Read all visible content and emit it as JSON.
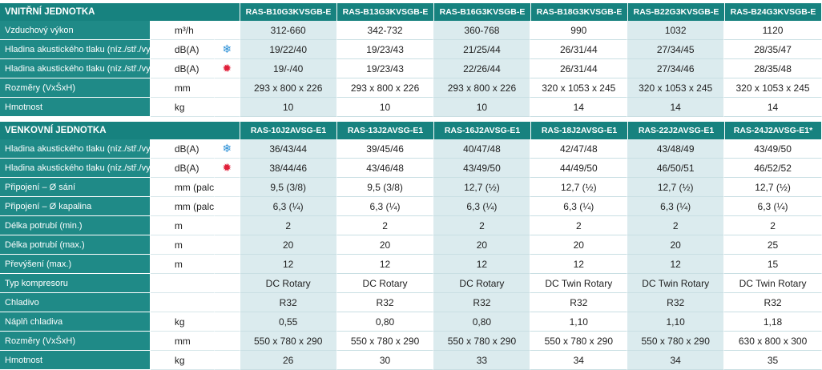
{
  "indoor": {
    "title": "VNITŘNÍ JEDNOTKA",
    "models": [
      "RAS-B10G3KVSGB-E",
      "RAS-B13G3KVSGB-E",
      "RAS-B16G3KVSGB-E",
      "RAS-B18G3KVSGB-E",
      "RAS-B22G3KVSGB-E",
      "RAS-B24G3KVSGB-E"
    ],
    "rows": [
      {
        "label": "Vzduchový výkon",
        "unit": "m³/h",
        "icon": "",
        "values": [
          "312-660",
          "342-732",
          "360-768",
          "990",
          "1032",
          "1120"
        ]
      },
      {
        "label": "Hladina akustického tlaku (níz./stř./vys.)",
        "unit": "dB(A)",
        "icon": "snowflake-icon",
        "values": [
          "19/22/40",
          "19/23/43",
          "21/25/44",
          "26/31/44",
          "27/34/45",
          "28/35/47"
        ]
      },
      {
        "label": "Hladina akustického tlaku (níz./stř./vys.)",
        "unit": "dB(A)",
        "icon": "sun-icon",
        "values": [
          "19/-/40",
          "19/23/43",
          "22/26/44",
          "26/31/44",
          "27/34/46",
          "28/35/48"
        ]
      },
      {
        "label": "Rozměry (VxŠxH)",
        "unit": "mm",
        "icon": "",
        "values": [
          "293 x 800 x 226",
          "293 x 800 x 226",
          "293 x 800 x 226",
          "320 x 1053 x 245",
          "320 x 1053 x 245",
          "320 x 1053 x 245"
        ]
      },
      {
        "label": "Hmotnost",
        "unit": "kg",
        "icon": "",
        "values": [
          "10",
          "10",
          "10",
          "14",
          "14",
          "14"
        ]
      }
    ]
  },
  "outdoor": {
    "title": "VENKOVNÍ JEDNOTKA",
    "models": [
      "RAS-10J2AVSG-E1",
      "RAS-13J2AVSG-E1",
      "RAS-16J2AVSG-E1",
      "RAS-18J2AVSG-E1",
      "RAS-22J2AVSG-E1",
      "RAS-24J2AVSG-E1*"
    ],
    "rows": [
      {
        "label": "Hladina akustického tlaku (níz./stř./vys.)",
        "unit": "dB(A)",
        "icon": "snowflake-icon",
        "values": [
          "36/43/44",
          "39/45/46",
          "40/47/48",
          "42/47/48",
          "43/48/49",
          "43/49/50"
        ]
      },
      {
        "label": "Hladina akustického tlaku (níz./stř./vys.)",
        "unit": "dB(A)",
        "icon": "sun-icon",
        "values": [
          "38/44/46",
          "43/46/48",
          "43/49/50",
          "44/49/50",
          "46/50/51",
          "46/52/52"
        ]
      },
      {
        "label": "Připojení – Ø sání",
        "unit": "mm (palce)",
        "icon": "",
        "values": [
          "9,5 (3/8)",
          "9,5 (3/8)",
          "12,7 (½)",
          "12,7 (½)",
          "12,7 (½)",
          "12,7 (½)"
        ]
      },
      {
        "label": "Připojení – Ø kapalina",
        "unit": "mm (palce)",
        "icon": "",
        "values": [
          "6,3 (¼)",
          "6,3 (¼)",
          "6,3 (¼)",
          "6,3 (¼)",
          "6,3 (¼)",
          "6,3 (¼)"
        ]
      },
      {
        "label": "Délka potrubí (min.)",
        "unit": "m",
        "icon": "",
        "values": [
          "2",
          "2",
          "2",
          "2",
          "2",
          "2"
        ]
      },
      {
        "label": "Délka potrubí (max.)",
        "unit": "m",
        "icon": "",
        "values": [
          "20",
          "20",
          "20",
          "20",
          "20",
          "25"
        ]
      },
      {
        "label": "Převýšení (max.)",
        "unit": "m",
        "icon": "",
        "values": [
          "12",
          "12",
          "12",
          "12",
          "12",
          "15"
        ]
      },
      {
        "label": "Typ kompresoru",
        "unit": "",
        "icon": "",
        "values": [
          "DC Rotary",
          "DC Rotary",
          "DC Rotary",
          "DC Twin Rotary",
          "DC Twin Rotary",
          "DC Twin Rotary"
        ]
      },
      {
        "label": "Chladivo",
        "unit": "",
        "icon": "",
        "values": [
          "R32",
          "R32",
          "R32",
          "R32",
          "R32",
          "R32"
        ]
      },
      {
        "label": "Náplň chladiva",
        "unit": "kg",
        "icon": "",
        "values": [
          "0,55",
          "0,80",
          "0,80",
          "1,10",
          "1,10",
          "1,18"
        ]
      },
      {
        "label": "Rozměry (VxŠxH)",
        "unit": "mm",
        "icon": "",
        "values": [
          "550 x 780 x 290",
          "550 x 780 x 290",
          "550 x 780 x 290",
          "550 x 780 x 290",
          "550 x 780 x 290",
          "630 x 800 x 300"
        ]
      },
      {
        "label": "Hmotnost",
        "unit": "kg",
        "icon": "",
        "values": [
          "26",
          "30",
          "33",
          "34",
          "34",
          "35"
        ]
      }
    ]
  }
}
